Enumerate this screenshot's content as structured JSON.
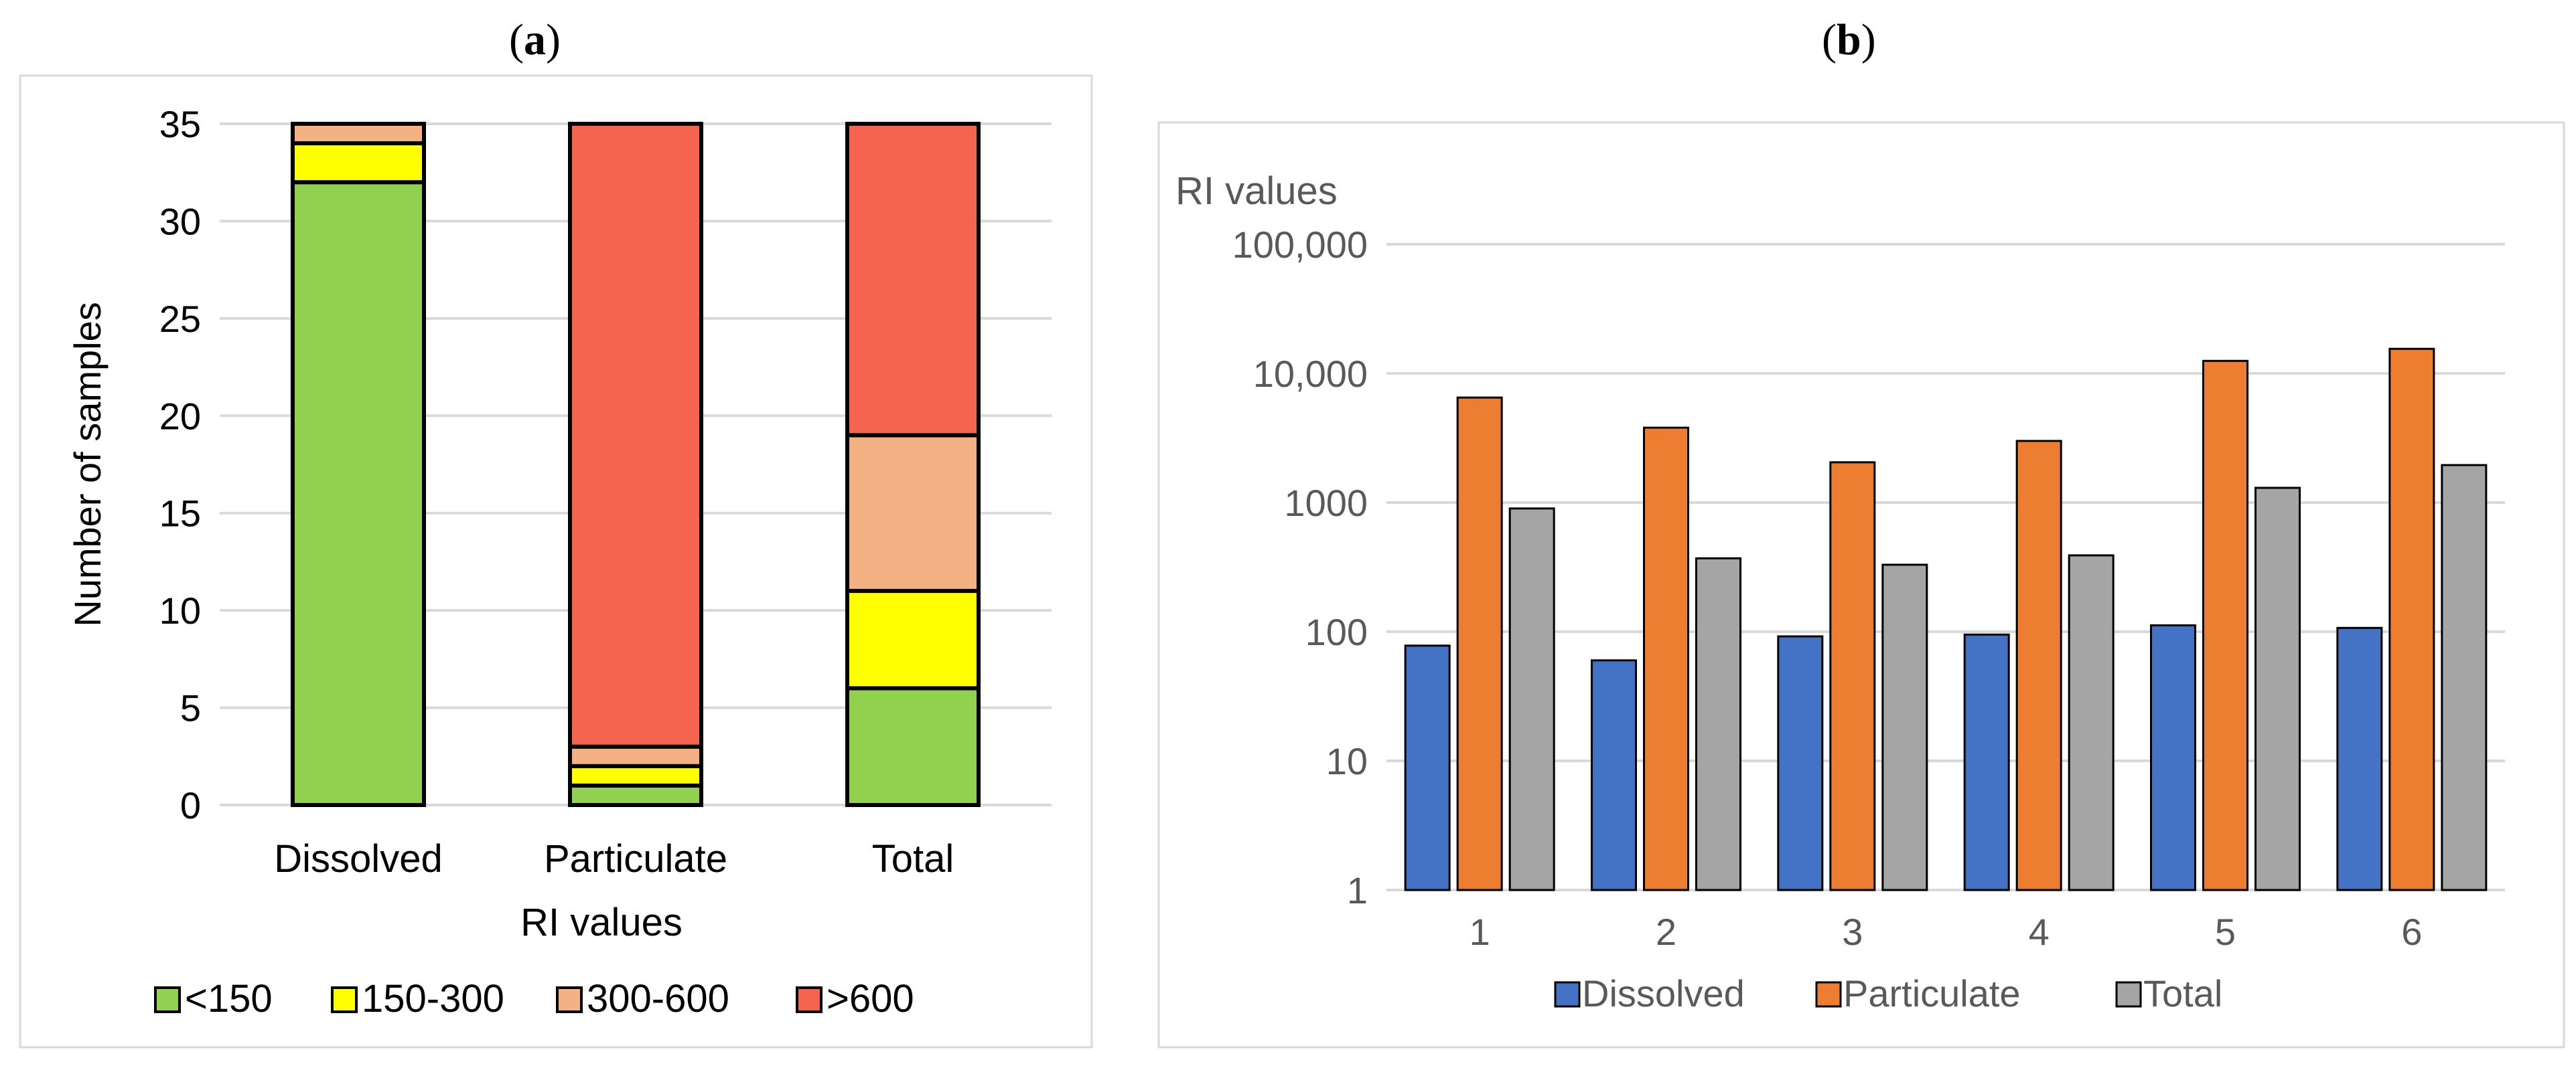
{
  "panels": {
    "a_label_open": "(",
    "a_label_letter": "a",
    "a_label_close": ")",
    "b_label_open": "(",
    "b_label_letter": "b",
    "b_label_close": ")"
  },
  "chart_data": [
    {
      "id": "a",
      "type": "bar",
      "stacked": true,
      "title": "",
      "xlabel": "RI  values",
      "ylabel": "Number of samples",
      "ylim": [
        0,
        35
      ],
      "yticks": [
        0,
        5,
        10,
        15,
        20,
        25,
        30,
        35
      ],
      "categories": [
        "Dissolved",
        "Particulate",
        "Total"
      ],
      "series": [
        {
          "name": "<150",
          "color": "#92d050",
          "values": [
            32,
            1,
            6
          ]
        },
        {
          "name": "150-300",
          "color": "#ffff00",
          "values": [
            2,
            1,
            5
          ]
        },
        {
          "name": "300-600",
          "color": "#f4b183",
          "values": [
            1,
            1,
            8
          ]
        },
        {
          "name": ">600",
          "color": "#f4644f",
          "values": [
            0,
            32,
            16
          ]
        }
      ],
      "legend_position": "bottom",
      "grid": true
    },
    {
      "id": "b",
      "type": "bar",
      "title": "",
      "ylabel": "RI values",
      "yscale": "log",
      "ylim": [
        1,
        100000
      ],
      "yticks": [
        1,
        10,
        100,
        1000,
        10000,
        100000
      ],
      "ytick_labels": [
        "1",
        "10",
        "100",
        "1000",
        "10,000",
        "100,000"
      ],
      "categories": [
        "1",
        "2",
        "3",
        "4",
        "5",
        "6"
      ],
      "series": [
        {
          "name": "Dissolved",
          "color": "#4472c4",
          "values": [
            78,
            60,
            92,
            95,
            112,
            107
          ]
        },
        {
          "name": "Particulate",
          "color": "#ed7d31",
          "values": [
            6500,
            3800,
            2050,
            3000,
            12500,
            15500
          ]
        },
        {
          "name": "Total",
          "color": "#a5a5a5",
          "values": [
            900,
            370,
            330,
            390,
            1300,
            1950
          ]
        }
      ],
      "legend_position": "bottom",
      "grid": true
    }
  ]
}
